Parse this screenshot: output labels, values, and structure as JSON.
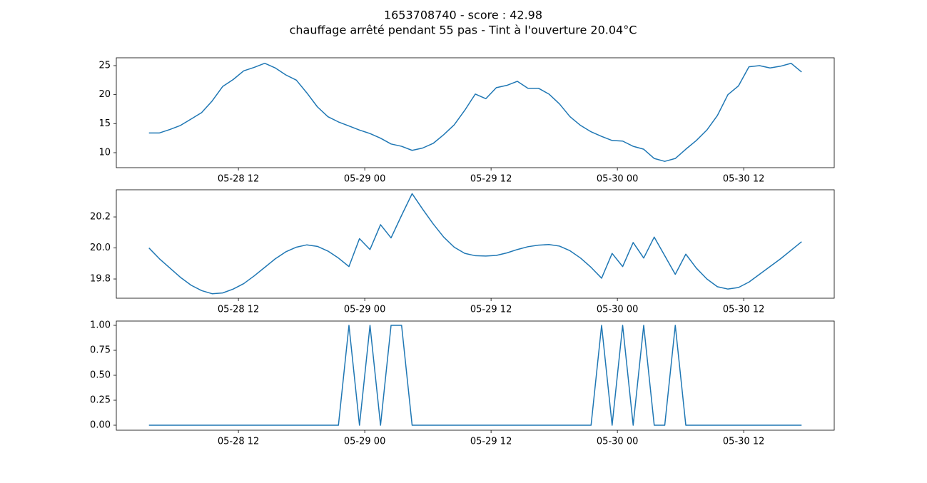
{
  "title": "1653708740 - score : 42.98",
  "subtitle": "chauffage arrêté pendant 55 pas - Tint à l'ouverture 20.04°C",
  "chart_data": [
    {
      "type": "line",
      "color": "#1f77b4",
      "x": [
        "05-28 03:30",
        "05-28 04:30",
        "05-28 05:30",
        "05-28 06:30",
        "05-28 07:30",
        "05-28 08:30",
        "05-28 09:30",
        "05-28 10:30",
        "05-28 11:30",
        "05-28 12:30",
        "05-28 13:30",
        "05-28 14:30",
        "05-28 15:30",
        "05-28 16:30",
        "05-28 17:30",
        "05-28 18:30",
        "05-28 19:30",
        "05-28 20:30",
        "05-28 21:30",
        "05-28 22:30",
        "05-28 23:30",
        "05-29 00:30",
        "05-29 01:30",
        "05-29 02:30",
        "05-29 03:30",
        "05-29 04:30",
        "05-29 05:30",
        "05-29 06:30",
        "05-29 07:30",
        "05-29 08:30",
        "05-29 09:30",
        "05-29 10:30",
        "05-29 11:30",
        "05-29 12:30",
        "05-29 13:30",
        "05-29 14:30",
        "05-29 15:30",
        "05-29 16:30",
        "05-29 17:30",
        "05-29 18:30",
        "05-29 19:30",
        "05-29 20:30",
        "05-29 21:30",
        "05-29 22:30",
        "05-29 23:30",
        "05-30 00:30",
        "05-30 01:30",
        "05-30 02:30",
        "05-30 03:30",
        "05-30 04:30",
        "05-30 05:30",
        "05-30 06:30",
        "05-30 07:30",
        "05-30 08:30",
        "05-30 09:30",
        "05-30 10:30",
        "05-30 11:30",
        "05-30 12:30",
        "05-30 13:30",
        "05-30 14:30",
        "05-30 15:30",
        "05-30 16:30",
        "05-30 17:30"
      ],
      "values": [
        13.4,
        13.4,
        14.0,
        14.7,
        15.8,
        16.9,
        18.9,
        21.4,
        22.6,
        24.1,
        24.7,
        25.4,
        24.6,
        23.4,
        22.5,
        20.3,
        17.9,
        16.2,
        15.3,
        14.6,
        13.9,
        13.3,
        12.5,
        11.5,
        11.1,
        10.4,
        10.8,
        11.6,
        13.1,
        14.8,
        17.3,
        20.1,
        19.3,
        21.2,
        21.6,
        22.3,
        21.1,
        21.1,
        20.1,
        18.4,
        16.2,
        14.7,
        13.6,
        12.8,
        12.1,
        12.0,
        11.1,
        10.6,
        9.0,
        8.5,
        9.0,
        10.6,
        12.1,
        13.9,
        16.4,
        20.0,
        21.5,
        24.8,
        25.0,
        24.6,
        24.9,
        25.4,
        23.9
      ],
      "xlim": [
        "05-28 00:24",
        "05-30 20:36"
      ],
      "xticks": [
        {
          "value": "05-28 12:00",
          "label": "05-28 12"
        },
        {
          "value": "05-29 00:00",
          "label": "05-29 00"
        },
        {
          "value": "05-29 12:00",
          "label": "05-29 12"
        },
        {
          "value": "05-30 00:00",
          "label": "05-30 00"
        },
        {
          "value": "05-30 12:00",
          "label": "05-30 12"
        }
      ],
      "ylim": [
        7.42,
        26.35
      ],
      "yticks": [
        10,
        15,
        20,
        25
      ]
    },
    {
      "type": "line",
      "color": "#1f77b4",
      "x": [
        "05-28 03:30",
        "05-28 04:30",
        "05-28 05:30",
        "05-28 06:30",
        "05-28 07:30",
        "05-28 08:30",
        "05-28 09:30",
        "05-28 10:30",
        "05-28 11:30",
        "05-28 12:30",
        "05-28 13:30",
        "05-28 14:30",
        "05-28 15:30",
        "05-28 16:30",
        "05-28 17:30",
        "05-28 18:30",
        "05-28 19:30",
        "05-28 20:30",
        "05-28 21:30",
        "05-28 22:30",
        "05-28 23:30",
        "05-29 00:30",
        "05-29 01:30",
        "05-29 02:30",
        "05-29 03:30",
        "05-29 04:30",
        "05-29 05:30",
        "05-29 06:30",
        "05-29 07:30",
        "05-29 08:30",
        "05-29 09:30",
        "05-29 10:30",
        "05-29 11:30",
        "05-29 12:30",
        "05-29 13:30",
        "05-29 14:30",
        "05-29 15:30",
        "05-29 16:30",
        "05-29 17:30",
        "05-29 18:30",
        "05-29 19:30",
        "05-29 20:30",
        "05-29 21:30",
        "05-29 22:30",
        "05-29 23:30",
        "05-30 00:30",
        "05-30 01:30",
        "05-30 02:30",
        "05-30 03:30",
        "05-30 04:30",
        "05-30 05:30",
        "05-30 06:30",
        "05-30 07:30",
        "05-30 08:30",
        "05-30 09:30",
        "05-30 10:30",
        "05-30 11:30",
        "05-30 12:30",
        "05-30 13:30",
        "05-30 14:30",
        "05-30 15:30",
        "05-30 16:30",
        "05-30 17:30"
      ],
      "values": [
        20.0,
        19.93,
        19.87,
        19.81,
        19.76,
        19.725,
        19.705,
        19.71,
        19.735,
        19.77,
        19.82,
        19.875,
        19.93,
        19.975,
        20.005,
        20.02,
        20.01,
        19.98,
        19.935,
        19.88,
        20.06,
        19.99,
        20.15,
        20.065,
        20.21,
        20.35,
        20.25,
        20.155,
        20.07,
        20.005,
        19.965,
        19.95,
        19.948,
        19.952,
        19.968,
        19.99,
        20.008,
        20.018,
        20.022,
        20.012,
        19.982,
        19.935,
        19.875,
        19.805,
        19.965,
        19.88,
        20.035,
        19.935,
        20.07,
        19.95,
        19.83,
        19.96,
        19.87,
        19.8,
        19.75,
        19.735,
        19.745,
        19.78,
        19.83,
        19.88,
        19.93,
        19.985,
        20.04
      ],
      "xlim": [
        "05-28 00:24",
        "05-30 20:36"
      ],
      "xticks": [
        {
          "value": "05-28 12:00",
          "label": "05-28 12"
        },
        {
          "value": "05-29 00:00",
          "label": "05-29 00"
        },
        {
          "value": "05-29 12:00",
          "label": "05-29 12"
        },
        {
          "value": "05-30 00:00",
          "label": "05-30 00"
        },
        {
          "value": "05-30 12:00",
          "label": "05-30 12"
        }
      ],
      "ylim": [
        19.676,
        20.375
      ],
      "yticks": [
        19.8,
        {
          "value": 20,
          "label": "20.0"
        },
        20.2
      ]
    },
    {
      "type": "line",
      "color": "#1f77b4",
      "x": [
        "05-28 03:30",
        "05-28 04:30",
        "05-28 05:30",
        "05-28 06:30",
        "05-28 07:30",
        "05-28 08:30",
        "05-28 09:30",
        "05-28 10:30",
        "05-28 11:30",
        "05-28 12:30",
        "05-28 13:30",
        "05-28 14:30",
        "05-28 15:30",
        "05-28 16:30",
        "05-28 17:30",
        "05-28 18:30",
        "05-28 19:30",
        "05-28 20:30",
        "05-28 21:30",
        "05-28 22:30",
        "05-28 23:30",
        "05-29 00:30",
        "05-29 01:30",
        "05-29 02:30",
        "05-29 03:30",
        "05-29 04:30",
        "05-29 05:30",
        "05-29 06:30",
        "05-29 07:30",
        "05-29 08:30",
        "05-29 09:30",
        "05-29 10:30",
        "05-29 11:30",
        "05-29 12:30",
        "05-29 13:30",
        "05-29 14:30",
        "05-29 15:30",
        "05-29 16:30",
        "05-29 17:30",
        "05-29 18:30",
        "05-29 19:30",
        "05-29 20:30",
        "05-29 21:30",
        "05-29 22:30",
        "05-29 23:30",
        "05-30 00:30",
        "05-30 01:30",
        "05-30 02:30",
        "05-30 03:30",
        "05-30 04:30",
        "05-30 05:30",
        "05-30 06:30",
        "05-30 07:30",
        "05-30 08:30",
        "05-30 09:30",
        "05-30 10:30",
        "05-30 11:30",
        "05-30 12:30",
        "05-30 13:30",
        "05-30 14:30",
        "05-30 15:30",
        "05-30 16:30",
        "05-30 17:30"
      ],
      "values": [
        0,
        0,
        0,
        0,
        0,
        0,
        0,
        0,
        0,
        0,
        0,
        0,
        0,
        0,
        0,
        0,
        0,
        0,
        0,
        1,
        0,
        1,
        0,
        1,
        1,
        0,
        0,
        0,
        0,
        0,
        0,
        0,
        0,
        0,
        0,
        0,
        0,
        0,
        0,
        0,
        0,
        0,
        0,
        1,
        0,
        1,
        0,
        1,
        0,
        0,
        1,
        0,
        0,
        0,
        0,
        0,
        0,
        0,
        0,
        0,
        0,
        0,
        0
      ],
      "xlim": [
        "05-28 00:24",
        "05-30 20:36"
      ],
      "xticks": [
        {
          "value": "05-28 12:00",
          "label": "05-28 12"
        },
        {
          "value": "05-29 00:00",
          "label": "05-29 00"
        },
        {
          "value": "05-29 12:00",
          "label": "05-29 12"
        },
        {
          "value": "05-30 00:00",
          "label": "05-30 00"
        },
        {
          "value": "05-30 12:00",
          "label": "05-30 12"
        }
      ],
      "ylim": [
        -0.05,
        1.043
      ],
      "yticks": [
        {
          "value": 0,
          "label": "0.00"
        },
        0.25,
        {
          "value": 0.5,
          "label": "0.50"
        },
        0.75,
        {
          "value": 1,
          "label": "1.00"
        }
      ]
    }
  ]
}
